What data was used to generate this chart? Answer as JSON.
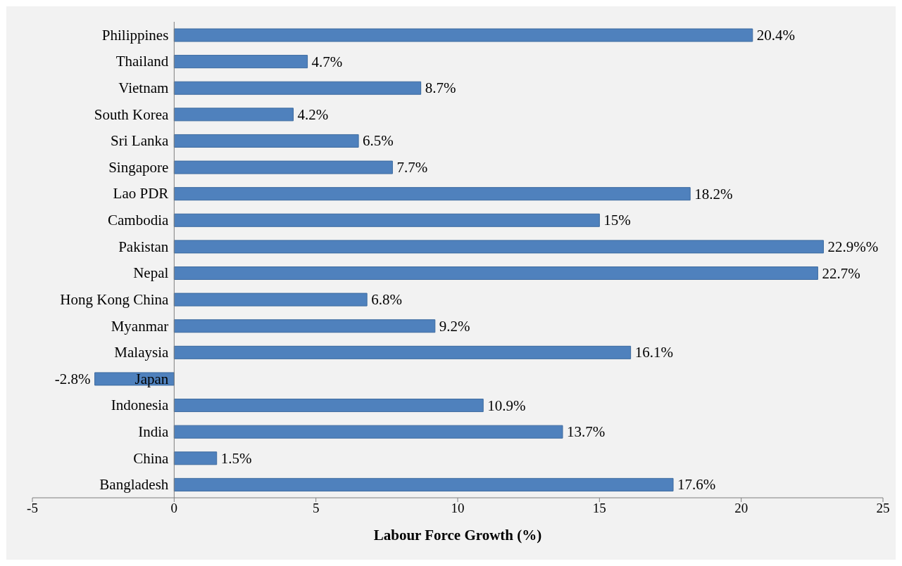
{
  "chart_data": {
    "type": "bar",
    "orientation": "horizontal",
    "xlabel": "Labour Force Growth (%)",
    "categories": [
      "Philippines",
      "Thailand",
      "Vietnam",
      "South Korea",
      "Sri Lanka",
      "Singapore",
      "Lao PDR",
      "Cambodia",
      "Pakistan",
      "Nepal",
      "Hong Kong China",
      "Myanmar",
      "Malaysia",
      "Japan",
      "Indonesia",
      "India",
      "China",
      "Bangladesh"
    ],
    "values": [
      20.4,
      4.7,
      8.7,
      4.2,
      6.5,
      7.7,
      18.2,
      15,
      22.9,
      22.7,
      6.8,
      9.2,
      16.1,
      -2.8,
      10.9,
      13.7,
      1.5,
      17.6
    ],
    "value_labels": [
      "20.4%",
      "4.7%",
      "8.7%",
      "4.2%",
      "6.5%",
      "7.7%",
      "18.2%",
      "15%",
      "22.9%%",
      "22.7%",
      "6.8%",
      "9.2%",
      "16.1%",
      "-2.8%",
      "10.9%",
      "13.7%",
      "1.5%",
      "17.6%"
    ],
    "color": "#4f81bd",
    "xlim": [
      -5,
      25
    ],
    "xticks": [
      -5,
      0,
      5,
      10,
      15,
      20,
      25
    ]
  }
}
